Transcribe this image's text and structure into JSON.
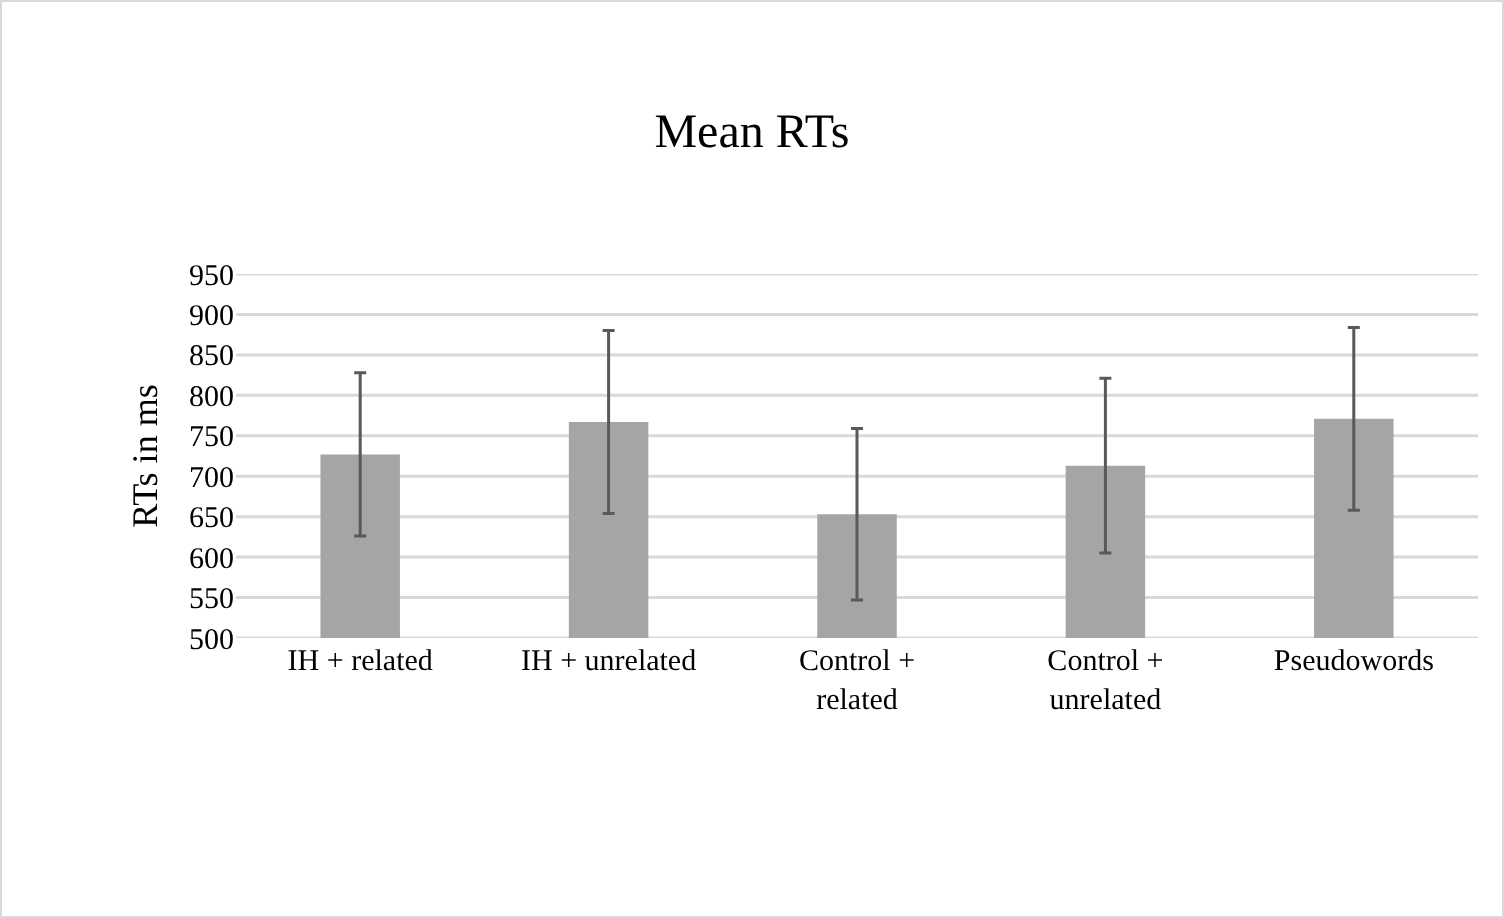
{
  "chart_data": {
    "type": "bar",
    "title": "Mean RTs",
    "ylabel": "RTs in ms",
    "categories": [
      "IH + related",
      "IH + unrelated",
      "Control + related",
      "Control + unrelated",
      "Pseudowords"
    ],
    "values": [
      727,
      767,
      653,
      713,
      771
    ],
    "errors": [
      101,
      113,
      106,
      108,
      113
    ],
    "color": "#a5a5a5",
    "ylim": [
      500,
      950
    ],
    "yticks": [
      500,
      550,
      600,
      650,
      700,
      750,
      800,
      850,
      900,
      950
    ],
    "grid": "y"
  }
}
